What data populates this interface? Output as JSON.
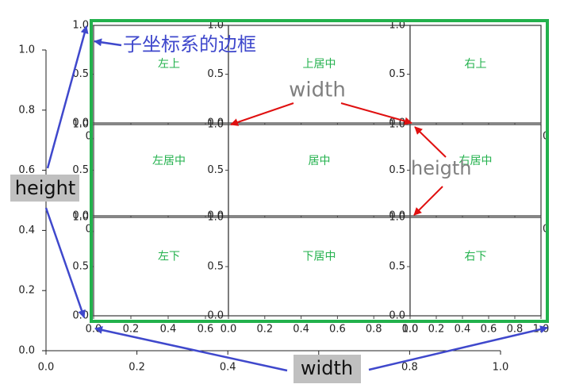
{
  "outer_axes": {
    "xticks": [
      "0.0",
      "0.2",
      "0.4",
      "0.6",
      "0.8",
      "1.0"
    ],
    "yticks": [
      "0.0",
      "0.2",
      "0.4",
      "0.6",
      "0.8",
      "1.0"
    ]
  },
  "subplots": [
    {
      "label": "左上",
      "xticks": [
        "0.0",
        "0.2",
        "0.4",
        "0.6"
      ],
      "yticks": [
        "0.0",
        "0.5",
        "1.0"
      ]
    },
    {
      "label": "上居中",
      "xticks": [
        "0.0",
        "0.2",
        "0.4",
        "0.6",
        "0.8",
        "1.0"
      ],
      "yticks": [
        "0.0",
        "0.5",
        "1.0"
      ]
    },
    {
      "label": "右上",
      "xticks": [
        "0.0",
        "0.2",
        "0.4",
        "0.6",
        "0.8",
        "1.0"
      ],
      "yticks": [
        "0.0",
        "0.5",
        "1.0"
      ]
    },
    {
      "label": "左居中",
      "xticks": [
        "0.0",
        "0.2",
        "0.4",
        "0.6"
      ],
      "yticks": [
        "0.0",
        "0.5",
        "1.0"
      ]
    },
    {
      "label": "居中",
      "xticks": [
        "0.0",
        "0.2",
        "0.4",
        "0.6",
        "0.8",
        "1.0"
      ],
      "yticks": [
        "0.0",
        "0.5",
        "1.0"
      ]
    },
    {
      "label": "右居中",
      "xticks": [
        "0.0",
        "0.2",
        "0.4",
        "0.6",
        "0.8",
        "1.0"
      ],
      "yticks": [
        "0.0",
        "0.5",
        "1.0"
      ]
    },
    {
      "label": "左下",
      "xticks": [
        "0.0",
        "0.2",
        "0.4",
        "0.6"
      ],
      "yticks": [
        "0.0",
        "0.5",
        "1.0"
      ]
    },
    {
      "label": "下居中",
      "xticks": [
        "0.0",
        "0.2",
        "0.4",
        "0.6",
        "0.8",
        "1.0"
      ],
      "yticks": [
        "0.0",
        "0.5",
        "1.0"
      ]
    },
    {
      "label": "右下",
      "xticks": [
        "0.0",
        "0.2",
        "0.4",
        "0.6",
        "0.8",
        "1.0"
      ],
      "yticks": [
        "0.0",
        "0.5",
        "1.0"
      ]
    }
  ],
  "annotations": {
    "border": "子坐标系的边框",
    "width_top": "width",
    "height_right": "heigth",
    "height_left": "height",
    "width_bottom": "width"
  }
}
